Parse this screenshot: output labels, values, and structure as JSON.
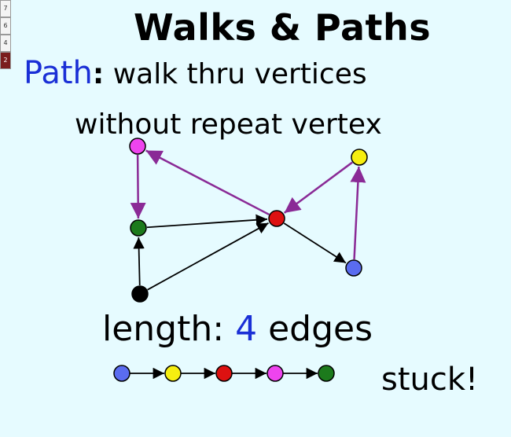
{
  "title": "Walks & Paths",
  "page_strip": [
    "7",
    "6",
    "4",
    "2"
  ],
  "definition": {
    "term": "Path",
    "colon": ":",
    "text_line1": "walk thru vertices",
    "text_line2": "without repeat vertex"
  },
  "length": {
    "label": "length:",
    "value": "4",
    "unit": "edges"
  },
  "stuck_label": "stuck!",
  "colors": {
    "background": "#e6fbff",
    "accent_blue": "#1a2fd6",
    "path_edge": "#8a2a96",
    "edge": "#000000"
  },
  "graph": {
    "vertices": [
      {
        "id": "magenta",
        "color": "#ee44ee"
      },
      {
        "id": "green",
        "color": "#1c7a1c"
      },
      {
        "id": "black",
        "color": "#000000"
      },
      {
        "id": "red",
        "color": "#dd1111"
      },
      {
        "id": "yellow",
        "color": "#f6ee10"
      },
      {
        "id": "blue",
        "color": "#5a6cf0"
      }
    ],
    "edges": [
      {
        "from": "black",
        "to": "green",
        "path": false
      },
      {
        "from": "black",
        "to": "red",
        "path": false
      },
      {
        "from": "green",
        "to": "red",
        "path": false
      },
      {
        "from": "red",
        "to": "blue",
        "path": false
      },
      {
        "from": "blue",
        "to": "yellow",
        "path": true
      },
      {
        "from": "yellow",
        "to": "red",
        "path": true
      },
      {
        "from": "red",
        "to": "magenta",
        "path": true
      },
      {
        "from": "magenta",
        "to": "green",
        "path": true
      }
    ]
  },
  "path_sequence": [
    "blue",
    "yellow",
    "red",
    "magenta",
    "green"
  ]
}
